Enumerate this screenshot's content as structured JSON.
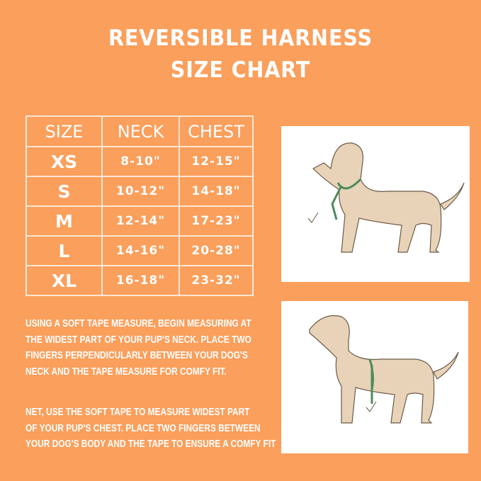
{
  "title": {
    "line1": "REVERSIBLE HARNESS",
    "line2": "SIZE CHART"
  },
  "table": {
    "headers": [
      "SIZE",
      "NECK",
      "CHEST"
    ],
    "rows": [
      {
        "size": "XS",
        "neck": "8-10\"",
        "chest": "12-15\""
      },
      {
        "size": "S",
        "neck": "10-12\"",
        "chest": "14-18\""
      },
      {
        "size": "M",
        "neck": "12-14\"",
        "chest": "17-23\""
      },
      {
        "size": "L",
        "neck": "14-16\"",
        "chest": "20-28\""
      },
      {
        "size": "XL",
        "neck": "16-18\"",
        "chest": "23-32\""
      }
    ]
  },
  "instructions": {
    "neck": [
      "USING A SOFT TAPE MEASURE, BEGIN MEASURING AT",
      "THE WIDEST PART OF YOUR PUP'S NECK. PLACE TWO",
      "FINGERS PERPENDICULARLY BETWEEN YOUR DOG'S",
      "NECK AND THE TAPE MEASURE FOR COMFY FIT."
    ],
    "chest": [
      "NET, USE THE SOFT TAPE TO MEASURE WIDEST PART",
      "OF YOUR PUP'S CHEST. PLACE TWO FINGERS BETWEEN",
      "YOUR DOG'S BODY AND THE TAPE TO ENSURE A COMFY FIT"
    ]
  },
  "colors": {
    "background": "#FA9F5C",
    "dog": "#E8D3B8",
    "tape": "#4E8A5A"
  },
  "images": [
    "dog-neck-measure-illustration",
    "dog-chest-measure-illustration"
  ]
}
